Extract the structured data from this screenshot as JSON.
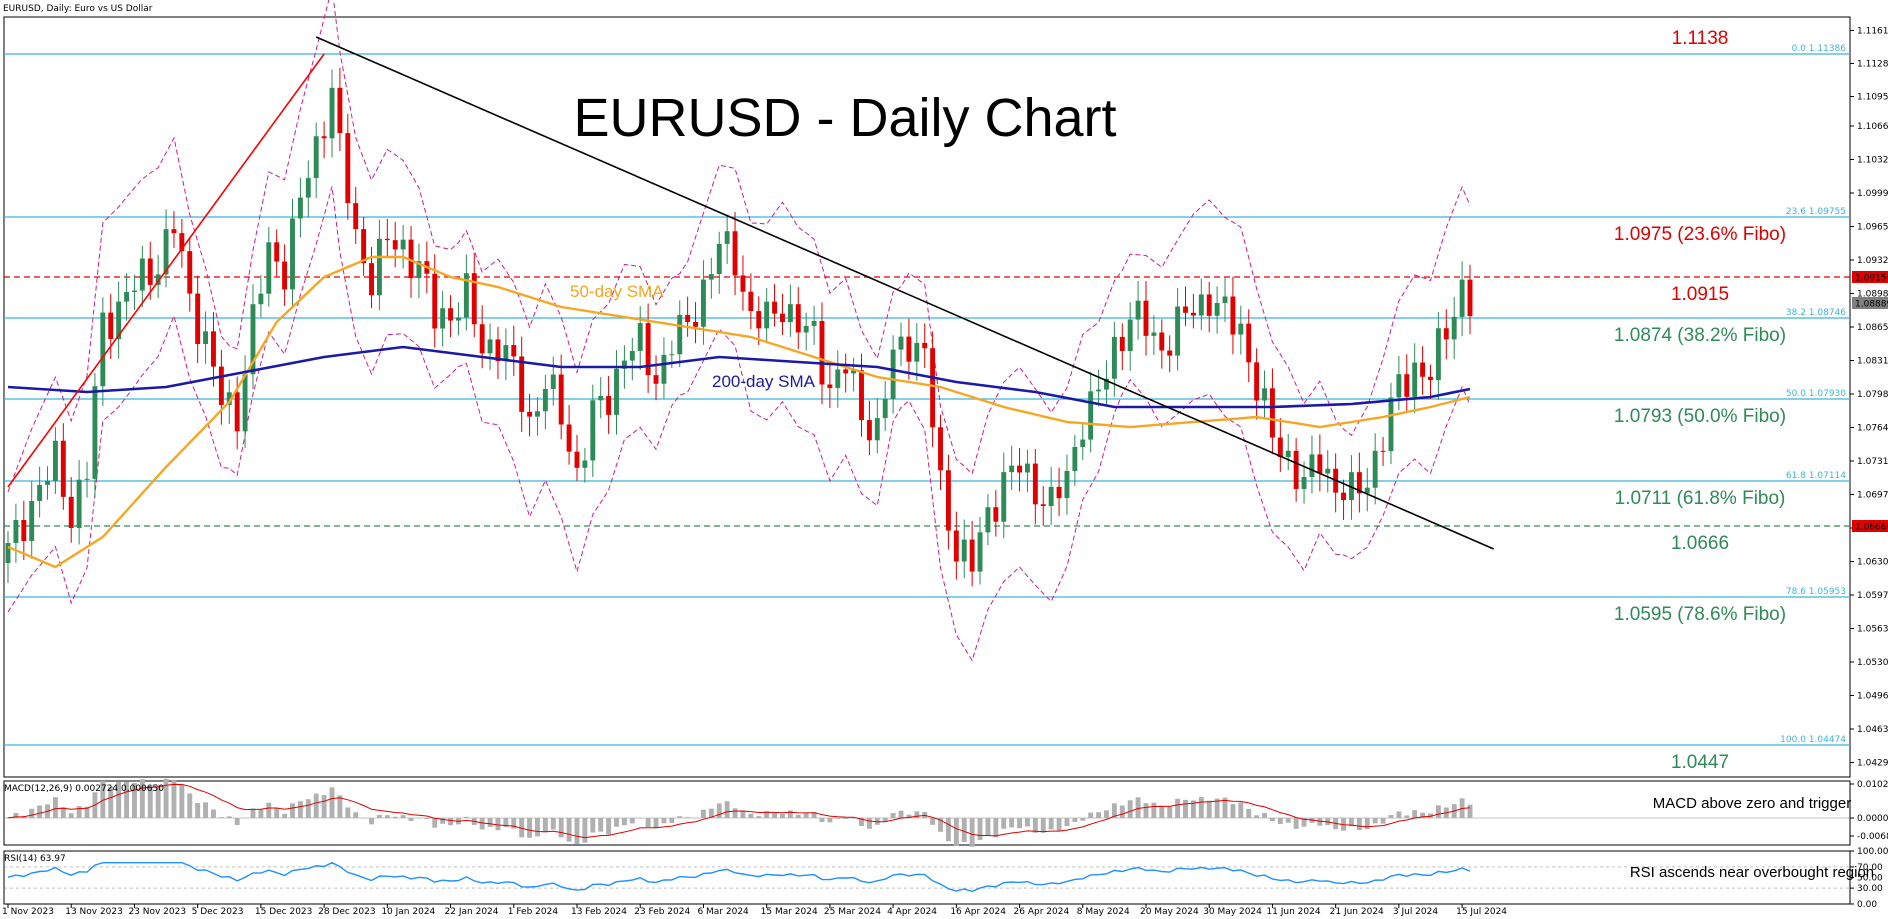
{
  "chart_data": {
    "type": "candlestick",
    "symbol_label": "EURUSD, Daily:  Euro vs US Dollar",
    "title": "EURUSD - Daily Chart",
    "colors": {
      "up": "#2e8b57",
      "down": "#e00000",
      "sma50": "#f5a623",
      "sma200": "#1a1aa6",
      "bands": "#d01c8b",
      "level": "#3cb4dc",
      "trend": "#000000",
      "upTrend": "#ff0000",
      "macd_hist": "#b0b0b0",
      "macd_signal": "#e00000",
      "rsi": "#1e90ff"
    },
    "y_axis": {
      "min": 1.0415,
      "max": 1.1175,
      "ticks": [
        "1.11615",
        "1.11285",
        "1.10955",
        "1.10660",
        "1.10325",
        "1.09990",
        "1.09655",
        "1.09320",
        "1.08985",
        "1.08650",
        "1.08315",
        "1.07980",
        "1.07645",
        "1.07310",
        "1.06975",
        "1.06640",
        "1.06305",
        "1.05970",
        "1.05635",
        "1.05300",
        "1.04965",
        "1.04630",
        "1.04295"
      ]
    },
    "x_ticks": [
      {
        "i": 0,
        "label": "1 Nov 2023"
      },
      {
        "i": 8,
        "label": "13 Nov 2023"
      },
      {
        "i": 16,
        "label": "23 Nov 2023"
      },
      {
        "i": 24,
        "label": "5 Dec 2023"
      },
      {
        "i": 32,
        "label": "15 Dec 2023"
      },
      {
        "i": 40,
        "label": "28 Dec 2023"
      },
      {
        "i": 48,
        "label": "10 Jan 2024"
      },
      {
        "i": 56,
        "label": "22 Jan 2024"
      },
      {
        "i": 64,
        "label": "1 Feb 2024"
      },
      {
        "i": 72,
        "label": "13 Feb 2024"
      },
      {
        "i": 80,
        "label": "23 Feb 2024"
      },
      {
        "i": 88,
        "label": "6 Mar 2024"
      },
      {
        "i": 96,
        "label": "15 Mar 2024"
      },
      {
        "i": 104,
        "label": "25 Mar 2024"
      },
      {
        "i": 112,
        "label": "4 Apr 2024"
      },
      {
        "i": 120,
        "label": "16 Apr 2024"
      },
      {
        "i": 128,
        "label": "26 Apr 2024"
      },
      {
        "i": 136,
        "label": "8 May 2024"
      },
      {
        "i": 144,
        "label": "20 May 2024"
      },
      {
        "i": 152,
        "label": "30 May 2024"
      },
      {
        "i": 160,
        "label": "11 Jun 2024"
      },
      {
        "i": 168,
        "label": "21 Jun 2024"
      },
      {
        "i": 176,
        "label": "3 Jul 2024"
      },
      {
        "i": 184,
        "label": "15 Jul 2024"
      }
    ],
    "bar_count": 186,
    "close_anchors": [
      [
        0,
        1.064
      ],
      [
        3,
        1.069
      ],
      [
        6,
        1.073
      ],
      [
        8,
        1.068
      ],
      [
        10,
        1.072
      ],
      [
        12,
        1.087
      ],
      [
        14,
        1.0885
      ],
      [
        17,
        1.0915
      ],
      [
        19,
        1.093
      ],
      [
        21,
        1.0965
      ],
      [
        23,
        1.0895
      ],
      [
        25,
        1.085
      ],
      [
        27,
        1.079
      ],
      [
        29,
        1.078
      ],
      [
        31,
        1.087
      ],
      [
        33,
        1.094
      ],
      [
        35,
        1.0925
      ],
      [
        37,
        1.099
      ],
      [
        39,
        1.1045
      ],
      [
        41,
        1.1105
      ],
      [
        42,
        1.104
      ],
      [
        44,
        1.0955
      ],
      [
        46,
        1.0915
      ],
      [
        48,
        1.095
      ],
      [
        50,
        1.0945
      ],
      [
        52,
        1.0925
      ],
      [
        54,
        1.0875
      ],
      [
        56,
        1.088
      ],
      [
        58,
        1.0895
      ],
      [
        60,
        1.0845
      ],
      [
        62,
        1.085
      ],
      [
        64,
        1.082
      ],
      [
        66,
        1.077
      ],
      [
        68,
        1.081
      ],
      [
        70,
        1.0775
      ],
      [
        72,
        1.072
      ],
      [
        74,
        1.0775
      ],
      [
        76,
        1.0795
      ],
      [
        78,
        1.084
      ],
      [
        80,
        1.0845
      ],
      [
        82,
        1.0815
      ],
      [
        84,
        1.085
      ],
      [
        86,
        1.0865
      ],
      [
        88,
        1.0905
      ],
      [
        90,
        1.0945
      ],
      [
        92,
        1.0935
      ],
      [
        94,
        1.0875
      ],
      [
        96,
        1.087
      ],
      [
        98,
        1.089
      ],
      [
        100,
        1.0865
      ],
      [
        102,
        1.0855
      ],
      [
        104,
        1.0805
      ],
      [
        106,
        1.0825
      ],
      [
        108,
        1.078
      ],
      [
        110,
        1.076
      ],
      [
        112,
        1.0835
      ],
      [
        114,
        1.0855
      ],
      [
        116,
        1.0835
      ],
      [
        118,
        1.0705
      ],
      [
        120,
        1.0645
      ],
      [
        122,
        1.0625
      ],
      [
        124,
        1.068
      ],
      [
        126,
        1.071
      ],
      [
        128,
        1.0725
      ],
      [
        130,
        1.0705
      ],
      [
        132,
        1.0685
      ],
      [
        134,
        1.0715
      ],
      [
        136,
        1.0775
      ],
      [
        138,
        1.0795
      ],
      [
        140,
        1.0845
      ],
      [
        142,
        1.0875
      ],
      [
        144,
        1.0865
      ],
      [
        146,
        1.0845
      ],
      [
        148,
        1.0865
      ],
      [
        150,
        1.0885
      ],
      [
        152,
        1.0895
      ],
      [
        154,
        1.0875
      ],
      [
        156,
        1.0865
      ],
      [
        158,
        1.0805
      ],
      [
        160,
        1.0755
      ],
      [
        162,
        1.0735
      ],
      [
        164,
        1.0705
      ],
      [
        166,
        1.0735
      ],
      [
        168,
        1.0705
      ],
      [
        170,
        1.0695
      ],
      [
        172,
        1.0715
      ],
      [
        174,
        1.0755
      ],
      [
        176,
        1.0805
      ],
      [
        178,
        1.0825
      ],
      [
        180,
        1.0815
      ],
      [
        182,
        1.0865
      ],
      [
        184,
        1.0905
      ],
      [
        185,
        1.0887
      ]
    ],
    "sma50_anchors": [
      [
        0,
        1.0645
      ],
      [
        6,
        1.0625
      ],
      [
        12,
        1.0655
      ],
      [
        20,
        1.0725
      ],
      [
        28,
        1.079
      ],
      [
        34,
        1.087
      ],
      [
        40,
        1.0915
      ],
      [
        46,
        1.0935
      ],
      [
        50,
        1.0935
      ],
      [
        56,
        1.0915
      ],
      [
        62,
        1.0905
      ],
      [
        70,
        1.0885
      ],
      [
        78,
        1.0875
      ],
      [
        86,
        1.0865
      ],
      [
        94,
        1.0855
      ],
      [
        102,
        1.0835
      ],
      [
        110,
        1.0815
      ],
      [
        118,
        1.0805
      ],
      [
        126,
        1.0785
      ],
      [
        134,
        1.077
      ],
      [
        142,
        1.0765
      ],
      [
        150,
        1.077
      ],
      [
        158,
        1.0775
      ],
      [
        166,
        1.0765
      ],
      [
        174,
        1.0775
      ],
      [
        180,
        1.0785
      ],
      [
        185,
        1.0795
      ]
    ],
    "sma200_anchors": [
      [
        0,
        1.0805
      ],
      [
        10,
        1.08
      ],
      [
        20,
        1.0805
      ],
      [
        30,
        1.082
      ],
      [
        40,
        1.0835
      ],
      [
        50,
        1.0845
      ],
      [
        60,
        1.0835
      ],
      [
        70,
        1.0825
      ],
      [
        80,
        1.0825
      ],
      [
        90,
        1.0835
      ],
      [
        100,
        1.083
      ],
      [
        110,
        1.0825
      ],
      [
        120,
        1.081
      ],
      [
        130,
        1.08
      ],
      [
        140,
        1.0785
      ],
      [
        150,
        1.0785
      ],
      [
        160,
        1.0785
      ],
      [
        170,
        1.0788
      ],
      [
        180,
        1.0795
      ],
      [
        185,
        1.0803
      ]
    ],
    "levels": [
      {
        "value": 1.1138,
        "label": "1.1138",
        "sublabel": "0.0 1.11386",
        "color": "#e00000",
        "style": "solid"
      },
      {
        "value": 1.0975,
        "label": "1.0975 (23.6% Fibo)",
        "sublabel": "23.6 1.09755",
        "color": "#e00000",
        "style": "solid"
      },
      {
        "value": 1.0915,
        "label": "1.0915",
        "sublabel": "",
        "color": "#e00000",
        "style": "dashed"
      },
      {
        "value": 1.0874,
        "label": "1.0874 (38.2% Fibo)",
        "sublabel": "38.2 1.08746",
        "color": "#2e8b57",
        "style": "solid"
      },
      {
        "value": 1.0793,
        "label": "1.0793 (50.0% Fibo)",
        "sublabel": "50.0 1.07930",
        "color": "#2e8b57",
        "style": "solid"
      },
      {
        "value": 1.0711,
        "label": "1.0711 (61.8% Fibo)",
        "sublabel": "61.8 1.07114",
        "color": "#2e8b57",
        "style": "solid"
      },
      {
        "value": 1.0666,
        "label": "1.0666",
        "sublabel": "",
        "color": "#2e8b57",
        "style": "dashed"
      },
      {
        "value": 1.0595,
        "label": "1.0595 (78.6% Fibo)",
        "sublabel": "78.6 1.05953",
        "color": "#2e8b57",
        "style": "solid"
      },
      {
        "value": 1.0447,
        "label": "1.0447",
        "sublabel": "100.0 1.04474",
        "color": "#2e8b57",
        "style": "solid"
      }
    ],
    "price_tags": [
      {
        "value": 1.0915,
        "label": "1.09150",
        "bg": "#e00000"
      },
      {
        "value": 1.0889,
        "label": "1.08889",
        "bg": "#808080"
      },
      {
        "value": 1.0666,
        "label": "1.06660",
        "bg": "#e00000"
      }
    ],
    "sma50_label": "50-day SMA",
    "sma200_label": "200-day SMA",
    "trendlines": {
      "down": [
        [
          39,
          1.1155
        ],
        [
          188,
          1.0643
        ]
      ],
      "up": [
        [
          0,
          1.0705
        ],
        [
          40,
          1.1138
        ]
      ]
    },
    "macd": {
      "label": "MACD(12,26,9) 0.002724 0.000650",
      "ticks": [
        "0.010256",
        "0.000000",
        "-0.006867"
      ],
      "note": "MACD above zero and trigger"
    },
    "rsi": {
      "label": "RSI(14) 63.97",
      "ticks": [
        "100.00",
        "70.00",
        "50.00",
        "30.00",
        "0.00"
      ],
      "note": "RSI ascends near overbought region"
    }
  }
}
